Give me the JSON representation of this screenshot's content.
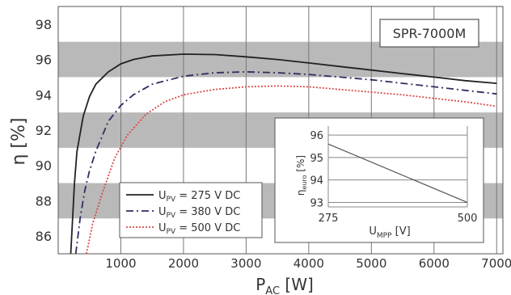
{
  "chart_data": {
    "type": "line",
    "badge": "SPR-7000M",
    "xlabel_main": "P",
    "xlabel_sub": "AC",
    "xlabel_unit": " [W]",
    "ylabel": "η [%]",
    "xlim": [
      0,
      7100
    ],
    "ylim": [
      85,
      99
    ],
    "x_ticks": [
      1000,
      2000,
      3000,
      4000,
      5000,
      6000,
      7000
    ],
    "y_ticks": [
      86,
      88,
      90,
      92,
      94,
      96,
      98
    ],
    "grid": "vertical lines, alternating grey horizontal bands",
    "legend_position": "bottom-left",
    "series": [
      {
        "name_main": "U",
        "name_sub": "PV",
        "name_rest": " = 275 V DC",
        "style": "solid",
        "color": "#222222",
        "points": [
          [
            200,
            85
          ],
          [
            230,
            87
          ],
          [
            260,
            89
          ],
          [
            300,
            90.8
          ],
          [
            400,
            92.8
          ],
          [
            500,
            93.9
          ],
          [
            600,
            94.6
          ],
          [
            800,
            95.3
          ],
          [
            1000,
            95.75
          ],
          [
            1200,
            96.0
          ],
          [
            1500,
            96.2
          ],
          [
            2000,
            96.3
          ],
          [
            2500,
            96.28
          ],
          [
            3000,
            96.15
          ],
          [
            3500,
            96.0
          ],
          [
            4000,
            95.8
          ],
          [
            4500,
            95.6
          ],
          [
            5000,
            95.4
          ],
          [
            5500,
            95.2
          ],
          [
            6000,
            95.0
          ],
          [
            6500,
            94.8
          ],
          [
            7000,
            94.65
          ]
        ]
      },
      {
        "name_main": "U",
        "name_sub": "PV",
        "name_rest": " = 380 V DC",
        "style": "dashed",
        "color": "#2f2f60",
        "points": [
          [
            280,
            85
          ],
          [
            350,
            87
          ],
          [
            420,
            88.5
          ],
          [
            500,
            89.7
          ],
          [
            600,
            90.8
          ],
          [
            800,
            92.5
          ],
          [
            1000,
            93.4
          ],
          [
            1200,
            94.0
          ],
          [
            1500,
            94.6
          ],
          [
            2000,
            95.05
          ],
          [
            2500,
            95.25
          ],
          [
            3000,
            95.3
          ],
          [
            3500,
            95.25
          ],
          [
            4000,
            95.15
          ],
          [
            4500,
            95.0
          ],
          [
            5000,
            94.85
          ],
          [
            5500,
            94.65
          ],
          [
            6000,
            94.45
          ],
          [
            6500,
            94.25
          ],
          [
            7000,
            94.05
          ]
        ]
      },
      {
        "name_main": "U",
        "name_sub": "PV",
        "name_rest": " = 500 V DC",
        "style": "dotted",
        "color": "#d94a4a",
        "points": [
          [
            450,
            85
          ],
          [
            550,
            86.7
          ],
          [
            700,
            88.4
          ],
          [
            900,
            90.4
          ],
          [
            1100,
            91.7
          ],
          [
            1400,
            92.9
          ],
          [
            1700,
            93.6
          ],
          [
            2000,
            94.0
          ],
          [
            2500,
            94.3
          ],
          [
            3000,
            94.45
          ],
          [
            3500,
            94.5
          ],
          [
            4000,
            94.45
          ],
          [
            4500,
            94.3
          ],
          [
            5000,
            94.15
          ],
          [
            5500,
            94.0
          ],
          [
            6000,
            93.8
          ],
          [
            6500,
            93.6
          ],
          [
            7000,
            93.35
          ]
        ]
      }
    ],
    "inset": {
      "type": "line",
      "xlabel_main": "U",
      "xlabel_sub": "MPP",
      "xlabel_unit": " [V]",
      "ylabel_main": "η",
      "ylabel_sub": "euro",
      "ylabel_unit": " [%]",
      "xlim": [
        275,
        500
      ],
      "ylim": [
        92.8,
        96.4
      ],
      "x_ticks": [
        275,
        500
      ],
      "y_ticks": [
        93,
        94,
        95,
        96
      ],
      "points": [
        [
          275,
          95.6
        ],
        [
          500,
          93.0
        ]
      ]
    }
  }
}
